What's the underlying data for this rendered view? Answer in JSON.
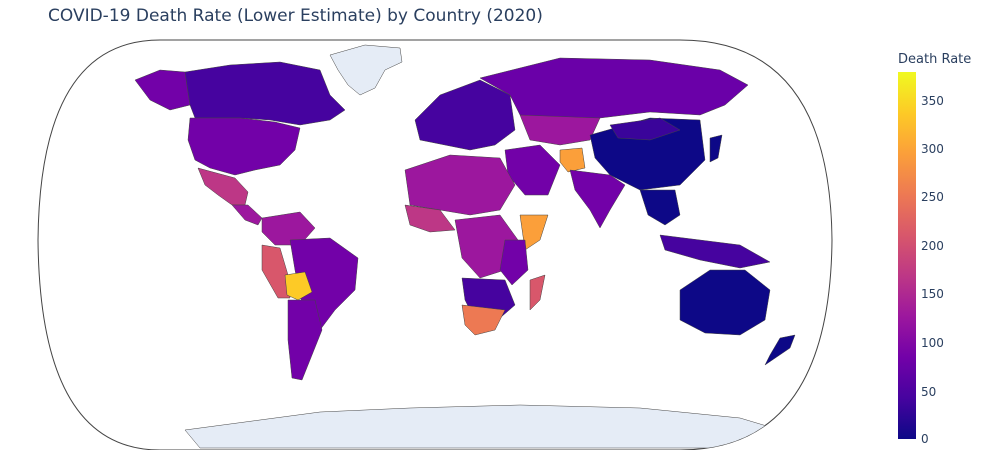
{
  "title": "COVID-19 Death Rate (Lower Estimate) by Country (2020)",
  "colorbar": {
    "title": "Death Rate",
    "min": 0,
    "max": 380,
    "ticks": [
      "0",
      "50",
      "100",
      "150",
      "200",
      "250",
      "300",
      "350"
    ],
    "colorscale": [
      "#0d0887",
      "#46039f",
      "#7201a8",
      "#9c179e",
      "#bd3786",
      "#d8576b",
      "#ed7953",
      "#fb9f3a",
      "#fdca26",
      "#f0f921"
    ]
  },
  "map": {
    "projection": "robinson",
    "land_no_data_color": "#e5ecf6",
    "border_color": "#444444"
  }
}
